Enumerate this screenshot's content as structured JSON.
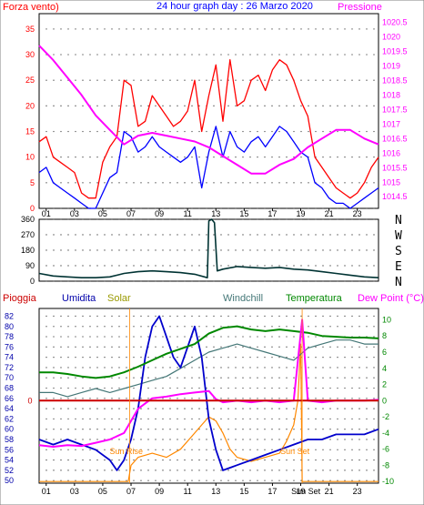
{
  "chart_data": [
    {
      "type": "line",
      "title": "24 hour graph day : 26 Marzo 2020",
      "left_label": "Forza vento)",
      "right_label": "Pressione",
      "x_ticks": [
        "01",
        "03",
        "05",
        "07",
        "09",
        "11",
        "13",
        "15",
        "17",
        "19",
        "21",
        "23"
      ],
      "y_left_ticks": [
        "0",
        "5",
        "10",
        "15",
        "20",
        "25",
        "30",
        "35"
      ],
      "y_left_range": [
        0,
        38
      ],
      "y_right_ticks": [
        "1014.5",
        "1015",
        "1015.5",
        "1016",
        "1016.5",
        "1017",
        "1017.5",
        "1018",
        "1018.5",
        "1019",
        "1019.5",
        "1020",
        "1020.5"
      ],
      "y_right_range": [
        1014.1,
        1020.8
      ],
      "series": [
        {
          "role": "gust",
          "color": "#ff0000",
          "axis": "left",
          "x": [
            0,
            0.5,
            1,
            1.5,
            2,
            2.5,
            3,
            3.5,
            4,
            4.5,
            5,
            5.5,
            6,
            6.5,
            7,
            7.5,
            8,
            8.5,
            9,
            9.5,
            10,
            10.5,
            11,
            11.5,
            12,
            12.5,
            13,
            13.5,
            14,
            14.5,
            15,
            15.5,
            16,
            16.5,
            17,
            17.5,
            18,
            18.5,
            19,
            19.5,
            20,
            20.5,
            21,
            21.5,
            22,
            22.5,
            23,
            23.5,
            24
          ],
          "y": [
            13,
            14,
            10,
            9,
            8,
            7,
            3,
            2,
            2,
            9,
            12,
            14,
            25,
            24,
            16,
            17,
            22,
            20,
            18,
            16,
            17,
            19,
            25,
            15,
            22,
            28,
            17,
            29,
            20,
            21,
            25,
            26,
            23,
            27,
            29,
            28,
            25,
            21,
            18,
            10,
            8,
            6,
            4,
            3,
            2,
            3,
            5,
            8,
            10
          ]
        },
        {
          "role": "speed",
          "color": "#0000ff",
          "axis": "left",
          "x": [
            0,
            0.5,
            1,
            1.5,
            2,
            2.5,
            3,
            3.5,
            4,
            4.5,
            5,
            5.5,
            6,
            6.5,
            7,
            7.5,
            8,
            8.5,
            9,
            9.5,
            10,
            10.5,
            11,
            11.5,
            12,
            12.5,
            13,
            13.5,
            14,
            14.5,
            15,
            15.5,
            16,
            16.5,
            17,
            17.5,
            18,
            18.5,
            19,
            19.5,
            20,
            20.5,
            21,
            21.5,
            22,
            22.5,
            23,
            23.5,
            24
          ],
          "y": [
            7,
            8,
            5,
            4,
            3,
            2,
            1,
            0,
            0,
            3,
            6,
            7,
            15,
            14,
            11,
            12,
            14,
            12,
            11,
            10,
            9,
            10,
            12,
            4,
            11,
            16,
            10,
            15,
            12,
            11,
            13,
            14,
            12,
            14,
            16,
            15,
            13,
            11,
            10,
            5,
            4,
            2,
            1,
            1,
            0,
            1,
            2,
            3,
            4
          ]
        },
        {
          "role": "pressure",
          "color": "#ff00ff",
          "axis": "right",
          "x": [
            0,
            1,
            2,
            3,
            4,
            5,
            6,
            7,
            8,
            9,
            10,
            11,
            12,
            13,
            14,
            15,
            16,
            17,
            18,
            19,
            20,
            21,
            22,
            23,
            24
          ],
          "y": [
            1019.7,
            1019.2,
            1018.6,
            1018.0,
            1017.3,
            1016.8,
            1016.3,
            1016.6,
            1016.7,
            1016.6,
            1016.5,
            1016.4,
            1016.2,
            1015.9,
            1015.6,
            1015.3,
            1015.3,
            1015.6,
            1015.8,
            1016.2,
            1016.5,
            1016.8,
            1016.8,
            1016.5,
            1016.3
          ]
        }
      ]
    },
    {
      "type": "line",
      "y_ticks": [
        "0",
        "90",
        "180",
        "270",
        "360"
      ],
      "y_range": [
        0,
        360
      ],
      "compass": [
        "N",
        "W",
        "S",
        "E",
        "N"
      ],
      "series": [
        {
          "role": "wind_direction",
          "color": "#003333",
          "x": [
            0,
            1,
            2,
            3,
            4,
            5,
            6,
            7,
            8,
            9,
            10,
            11,
            11.9,
            12.0,
            12.2,
            12.4,
            12.6,
            13,
            14,
            15,
            16,
            17,
            18,
            19,
            20,
            21,
            22,
            23,
            24
          ],
          "y": [
            45,
            30,
            25,
            20,
            20,
            25,
            45,
            55,
            60,
            55,
            50,
            40,
            20,
            350,
            360,
            340,
            60,
            70,
            85,
            80,
            75,
            80,
            70,
            65,
            55,
            45,
            35,
            25,
            20
          ]
        }
      ]
    },
    {
      "type": "line",
      "labels": {
        "rain": "Pioggia",
        "humidity": "Umidita",
        "solar": "Solar",
        "windchill": "Windchill",
        "temperature": "Temperatura",
        "dewpoint": "Dew Point (°C)"
      },
      "colors": {
        "rain": "#cc0000",
        "humidity": "#0000cc",
        "solar": "#ff8800",
        "windchill": "#447777",
        "temperature": "#008800",
        "dewpoint": "#ff00ff"
      },
      "x_ticks": [
        "01",
        "03",
        "05",
        "07",
        "09",
        "11",
        "13",
        "15",
        "17",
        "19",
        "21",
        "23"
      ],
      "y_left_ticks": [
        "50",
        "52",
        "54",
        "56",
        "58",
        "60",
        "62",
        "64",
        "66",
        "68",
        "70",
        "72",
        "74",
        "76",
        "78",
        "80",
        "82"
      ],
      "y_left_range": [
        49.5,
        83.5
      ],
      "y_right_ticks": [
        "-10",
        "-8",
        "-6",
        "-4",
        "-2",
        "0",
        "2",
        "4",
        "6",
        "8",
        "10"
      ],
      "y_right_range": [
        -10.2,
        11.4
      ],
      "rain_zero_label": "0",
      "annotations": {
        "sunrise": "Sun Rise",
        "sunset_mid": "Sun Set",
        "sunset_axis": "Sun Set"
      },
      "series": [
        {
          "role": "humidity",
          "axis": "left",
          "x": [
            0,
            1,
            2,
            3,
            4,
            5,
            5.5,
            6,
            6.5,
            7,
            7.5,
            8,
            8.5,
            9,
            9.5,
            10,
            10.5,
            11,
            11.5,
            12,
            12.5,
            13,
            14,
            15,
            16,
            17,
            18,
            19,
            20,
            21,
            22,
            23,
            24
          ],
          "y": [
            58,
            57,
            58,
            57,
            56,
            54,
            52,
            54,
            58,
            64,
            74,
            80,
            82,
            78,
            74,
            72,
            76,
            80,
            74,
            62,
            56,
            52,
            53,
            54,
            55,
            56,
            57,
            58,
            58,
            59,
            59,
            59,
            60
          ]
        },
        {
          "role": "temperature",
          "axis": "right",
          "x": [
            0,
            1,
            2,
            3,
            4,
            5,
            6,
            7,
            8,
            9,
            10,
            11,
            12,
            13,
            14,
            15,
            16,
            17,
            18,
            19,
            20,
            21,
            22,
            23,
            24
          ],
          "y": [
            3.5,
            3.5,
            3.3,
            3.0,
            2.8,
            3.0,
            3.5,
            4.2,
            5.0,
            5.8,
            6.4,
            7.0,
            8.3,
            9.0,
            9.2,
            8.8,
            8.6,
            8.8,
            8.6,
            8.4,
            8.0,
            7.9,
            7.8,
            7.8,
            7.7
          ]
        },
        {
          "role": "windchill",
          "axis": "right",
          "x": [
            0,
            1,
            2,
            3,
            4,
            5,
            6,
            7,
            8,
            9,
            10,
            11,
            12,
            13,
            14,
            15,
            16,
            17,
            18,
            19,
            20,
            21,
            22,
            23,
            24
          ],
          "y": [
            1.0,
            1.0,
            0.5,
            1.0,
            1.5,
            1.0,
            1.5,
            2.0,
            2.5,
            3.0,
            4.0,
            5.0,
            6.0,
            6.5,
            7.0,
            6.5,
            6.0,
            5.5,
            5.0,
            6.5,
            7.0,
            7.5,
            7.5,
            7.0,
            7.0
          ]
        },
        {
          "role": "dewpoint",
          "axis": "right",
          "x": [
            0,
            1,
            2,
            3,
            4,
            5,
            6,
            6.5,
            7,
            8,
            9,
            10,
            11,
            12,
            12.5,
            13,
            14,
            15,
            16,
            17,
            18,
            18.6,
            19,
            20,
            21,
            22,
            23,
            24
          ],
          "y": [
            -5.5,
            -5.7,
            -5.5,
            -5.6,
            -5.2,
            -4.8,
            -4.0,
            -2.5,
            -1.0,
            0.3,
            0.5,
            0.8,
            1.0,
            1.2,
            0.2,
            -0.2,
            0.0,
            -0.2,
            0.0,
            -0.2,
            0.0,
            10.0,
            0.0,
            -0.2,
            0.0,
            0.0,
            0.0,
            0.1
          ]
        },
        {
          "role": "solar",
          "axis": "right",
          "x": [
            0,
            6.3,
            6.5,
            7,
            8,
            9,
            10,
            11,
            11.5,
            12,
            12.5,
            13,
            13.5,
            14,
            15,
            16,
            17,
            17.5,
            18,
            18.3,
            18.5,
            18.6,
            24
          ],
          "y": [
            -10,
            -10,
            -8,
            -7,
            -6.5,
            -7,
            -6,
            -4,
            -3,
            -2,
            -2.5,
            -4,
            -6,
            -7,
            -7.5,
            -7,
            -6.5,
            -5,
            -3,
            0,
            7,
            -10,
            -10
          ]
        },
        {
          "role": "rain",
          "axis": "right",
          "x": [
            0,
            24
          ],
          "y": [
            0,
            0
          ]
        }
      ]
    }
  ]
}
